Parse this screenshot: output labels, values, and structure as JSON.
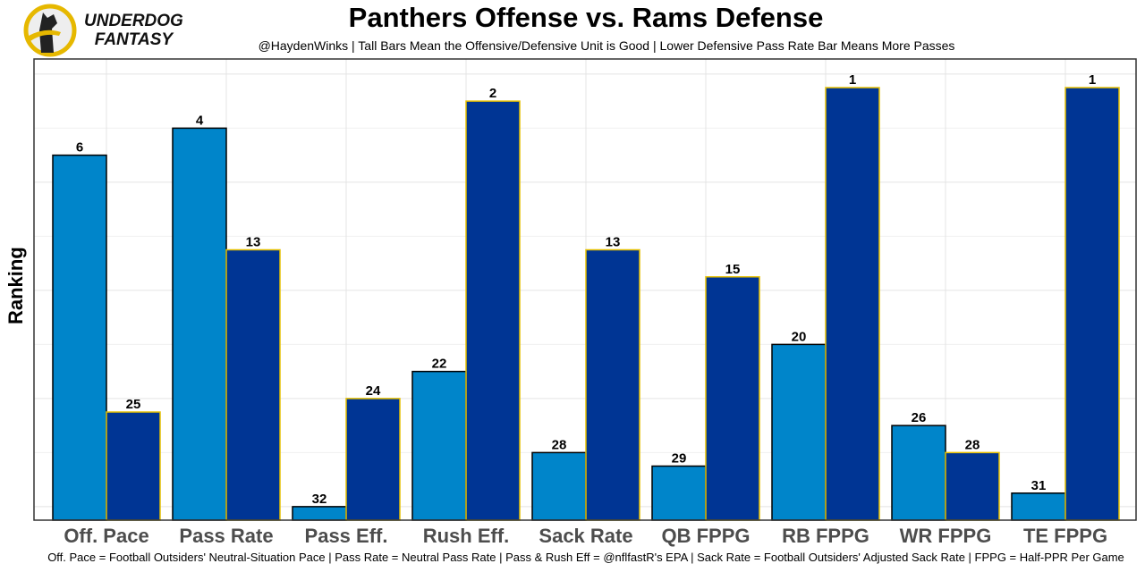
{
  "logo": {
    "line1": "UNDERDOG",
    "line2": "FANTASY"
  },
  "chart_data": {
    "type": "bar",
    "title": "Panthers Offense vs. Rams Defense",
    "subtitle": "@HaydenWinks | Tall Bars Mean the Offensive/Defensive Unit is Good | Lower Defensive Pass Rate Bar Means More Passes",
    "caption": "Off. Pace = Football Outsiders' Neutral-Situation Pace | Pass Rate = Neutral Pass Rate | Pass & Rush Eff = @nflfastR's EPA | Sack Rate = Football Outsiders' Adjusted Sack Rate | FPPG = Half-PPR Per Game",
    "xlabel": "",
    "ylabel": "Ranking",
    "categories": [
      "Off. Pace",
      "Pass Rate",
      "Pass Eff.",
      "Rush Eff.",
      "Sack Rate",
      "QB FPPG",
      "RB FPPG",
      "WR FPPG",
      "TE FPPG"
    ],
    "series": [
      {
        "name": "Panthers Offense",
        "color": "#0085CA",
        "values": [
          6,
          4,
          32,
          22,
          28,
          29,
          20,
          26,
          31
        ]
      },
      {
        "name": "Rams Defense",
        "color": "#003594",
        "values": [
          25,
          13,
          24,
          2,
          13,
          15,
          1,
          28,
          1
        ]
      }
    ],
    "ylim": [
      32,
      1
    ],
    "grid": true
  }
}
